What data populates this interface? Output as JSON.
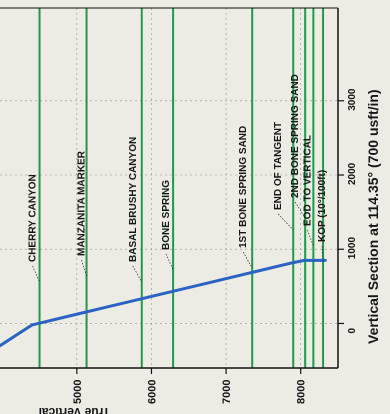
{
  "chart_data": {
    "type": "line",
    "title": "",
    "xlabel": "True Vertical",
    "ylabel": "Vertical Section at 114.35° (700 usft/in)",
    "x_ticks": [
      5000,
      6000,
      7000,
      8000
    ],
    "x_tick_labels": [
      "5000",
      "6000",
      "7000",
      "8000"
    ],
    "y_ticks": [
      0,
      1000,
      2000,
      3000
    ],
    "y_tick_labels": [
      "0",
      "1000",
      "2000",
      "3000"
    ],
    "xlim": [
      3970,
      8500
    ],
    "ylim": [
      -600,
      4250
    ],
    "grid": true,
    "series": [
      {
        "name": "",
        "color": "#2a63c4",
        "x": [
          3970,
          4400,
          4900,
          5400,
          5900,
          6400,
          6900,
          7400,
          7900,
          8050,
          8250,
          8330
        ],
        "y": [
          -300,
          -20,
          100,
          220,
          340,
          460,
          580,
          700,
          820,
          850,
          850,
          850
        ]
      }
    ],
    "formations": [
      {
        "label": "CHERRY CANYON",
        "tvd": 4500
      },
      {
        "label": "MANZANITA MARKER",
        "tvd": 5130
      },
      {
        "label": "BASAL BRUSHY CANYON",
        "tvd": 5870
      },
      {
        "label": "BONE SPRING",
        "tvd": 6290
      },
      {
        "label": "1ST BONE SPRING SAND",
        "tvd": 7350
      },
      {
        "label": "END OF TANGENT",
        "tvd": 7900
      },
      {
        "label": "2ND BONE SPRING SAND",
        "tvd": 8060
      },
      {
        "label": "EOD TO VERTICAL",
        "tvd": 8170
      },
      {
        "label": "KOP (10°/100ft)",
        "tvd": 8300
      }
    ],
    "colors": {
      "formation_line": "#1f9a48",
      "grid": "#8f8f8f",
      "label": "#161616"
    }
  }
}
